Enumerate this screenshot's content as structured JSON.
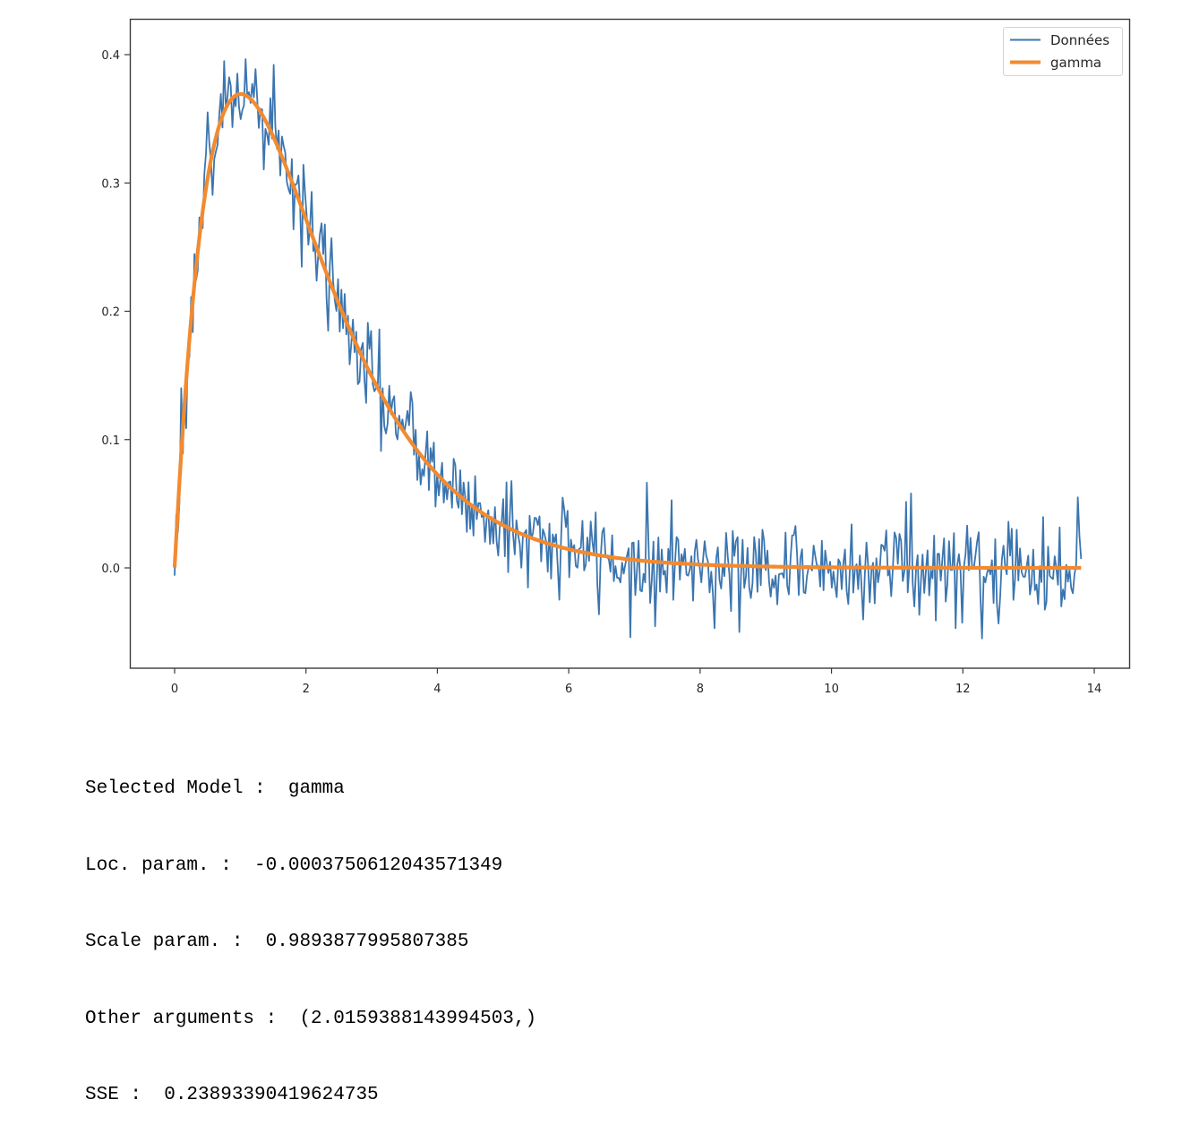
{
  "chart_data": {
    "type": "line",
    "title": "",
    "xlabel": "",
    "ylabel": "",
    "xlim": [
      -0.69,
      14.54
    ],
    "ylim": [
      -0.078,
      0.428
    ],
    "xticks": [
      0,
      2,
      4,
      6,
      8,
      10,
      12,
      14
    ],
    "xtick_labels": [
      "0",
      "2",
      "4",
      "6",
      "8",
      "10",
      "12",
      "14"
    ],
    "yticks": [
      0.0,
      0.1,
      0.2,
      0.3,
      0.4
    ],
    "ytick_labels": [
      "0.0",
      "0.1",
      "0.2",
      "0.3",
      "0.4"
    ],
    "grid": false,
    "legend_position": "upper right",
    "series": [
      {
        "name": "Données",
        "color": "#3b75af",
        "kind": "noisy data",
        "x_range": [
          0,
          13.8
        ],
        "n_points": 550,
        "shape": "gamma-shaped pdf plus gaussian noise (sd ~0.02)",
        "approx_points": [
          {
            "x": 0.0,
            "y": -0.006
          },
          {
            "x": 0.1,
            "y": 0.14
          },
          {
            "x": 0.3,
            "y": 0.25
          },
          {
            "x": 0.5,
            "y": 0.355
          },
          {
            "x": 0.75,
            "y": 0.395
          },
          {
            "x": 1.0,
            "y": 0.403
          },
          {
            "x": 1.5,
            "y": 0.392
          },
          {
            "x": 2.0,
            "y": 0.3
          },
          {
            "x": 2.5,
            "y": 0.21
          },
          {
            "x": 3.0,
            "y": 0.16
          },
          {
            "x": 4.0,
            "y": 0.08
          },
          {
            "x": 5.0,
            "y": 0.03
          },
          {
            "x": 6.0,
            "y": 0.01
          },
          {
            "x": 6.95,
            "y": -0.054
          },
          {
            "x": 8.0,
            "y": 0.005
          },
          {
            "x": 10.0,
            "y": 0.0
          },
          {
            "x": 11.2,
            "y": 0.058
          },
          {
            "x": 12.3,
            "y": -0.055
          },
          {
            "x": 13.75,
            "y": 0.055
          },
          {
            "x": 13.8,
            "y": 0.007
          }
        ]
      },
      {
        "name": "gamma",
        "color": "#f28a30",
        "kind": "fitted pdf",
        "distribution": "gamma",
        "params": {
          "a": 2.0159388143994503,
          "loc": -0.00037506120435713,
          "scale": 0.9893877995807385
        },
        "x_range": [
          0,
          13.8
        ],
        "approx_points": [
          {
            "x": 0.0,
            "y": 0.015
          },
          {
            "x": 0.25,
            "y": 0.2
          },
          {
            "x": 0.5,
            "y": 0.31
          },
          {
            "x": 1.0,
            "y": 0.37
          },
          {
            "x": 1.5,
            "y": 0.34
          },
          {
            "x": 2.0,
            "y": 0.27
          },
          {
            "x": 3.0,
            "y": 0.15
          },
          {
            "x": 4.0,
            "y": 0.073
          },
          {
            "x": 5.0,
            "y": 0.033
          },
          {
            "x": 6.0,
            "y": 0.015
          },
          {
            "x": 8.0,
            "y": 0.003
          },
          {
            "x": 10.0,
            "y": 0.0005
          },
          {
            "x": 13.8,
            "y": 0.0
          }
        ]
      }
    ]
  },
  "figure": {
    "legend": {
      "items": [
        {
          "label": "Données",
          "color": "#3b75af"
        },
        {
          "label": "gamma",
          "color": "#f28a30"
        }
      ]
    }
  },
  "output": {
    "lines": [
      {
        "label": "Selected Model :  ",
        "value": "gamma"
      },
      {
        "label": "Loc. param. :  ",
        "value": "-0.0003750612043571349"
      },
      {
        "label": "Scale param. :  ",
        "value": "0.9893877995807385"
      },
      {
        "label": "Other arguments :  ",
        "value": "(2.0159388143994503,)"
      },
      {
        "label": "SSE :  ",
        "value": "0.23893390419624735"
      }
    ]
  }
}
